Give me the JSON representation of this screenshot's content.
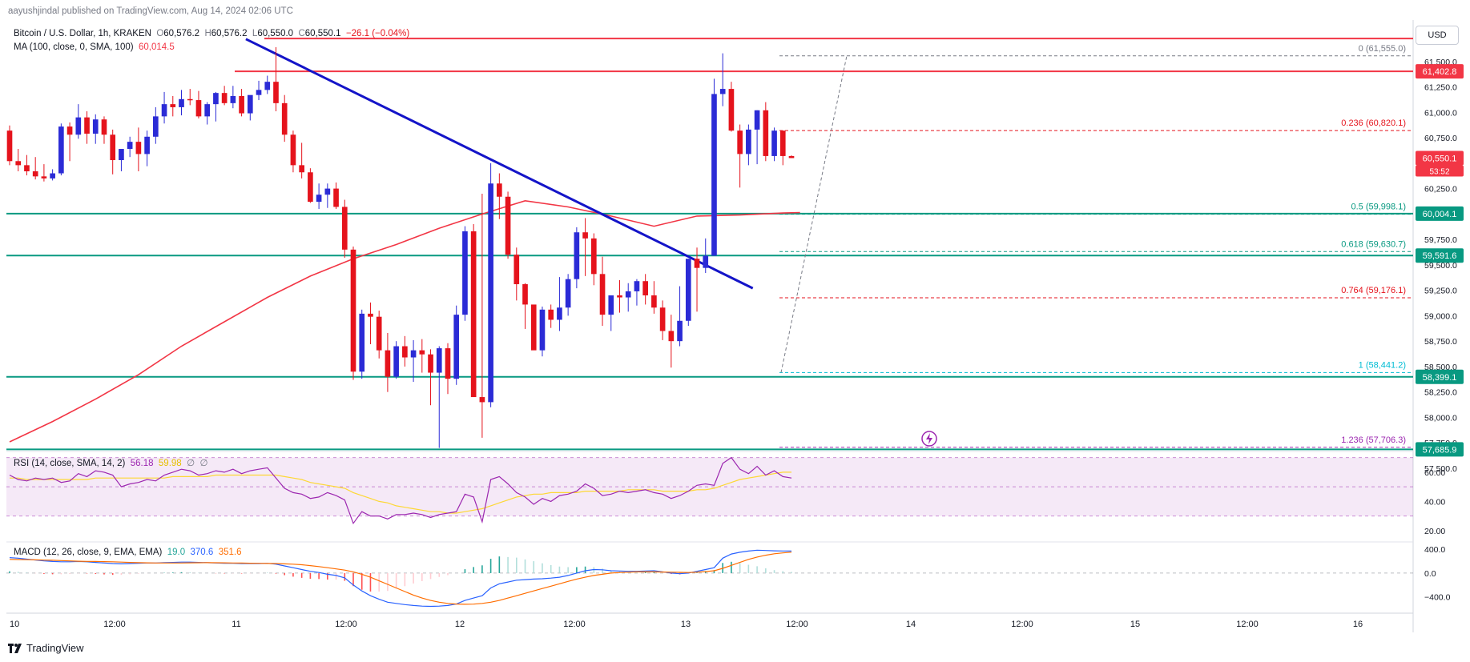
{
  "header": {
    "publisher": "aayushjindal published on TradingView.com, Aug 14, 2024 02:06 UTC",
    "symbol": "Bitcoin / U.S. Dollar, 1h, KRAKEN",
    "o_label": "O",
    "o_value": "60,576.2",
    "h_label": "H",
    "h_value": "60,576.2",
    "l_label": "L",
    "l_value": "60,550.0",
    "c_label": "C",
    "c_value": "60,550.1",
    "change": "−26.1 (−0.04%)",
    "ma_label": "MA (100, close, 0, SMA, 100)",
    "ma_value": "60,014.5",
    "currency_button": "USD"
  },
  "brand": "TradingView",
  "colors": {
    "up": "#2b2bd6",
    "down": "#e5131c",
    "ma": "#f23645",
    "trend": "#1414c8",
    "hline": "#089981",
    "resist": "#f23645",
    "rsi": "#9c27b0",
    "rsi_ma": "#fdd835",
    "macd": "#2962ff",
    "signal": "#ff6d00"
  },
  "chart_data": [
    {
      "type": "candlestick",
      "title": "Bitcoin / U.S. Dollar, 1h, KRAKEN",
      "ylim": [
        57500,
        61750
      ],
      "x_ticks": [
        "10",
        "12:00",
        "11",
        "12:00",
        "12",
        "12:00",
        "13",
        "12:00",
        "14",
        "12:00",
        "15",
        "12:00",
        "16"
      ],
      "y_ticks": [
        "61,500.0",
        "61,250.0",
        "61,000.0",
        "60,750.0",
        "60,500.0",
        "60,250.0",
        "60,000.0",
        "59,750.0",
        "59,500.0",
        "59,250.0",
        "59,000.0",
        "58,750.0",
        "58,500.0",
        "58,250.0",
        "58,000.0",
        "57,750.0",
        "57,500.0"
      ],
      "last_price_label": "60,550.1",
      "countdown_label": "53:52",
      "candles_ohlc": [
        [
          60820,
          60870,
          60480,
          60520
        ],
        [
          60520,
          60640,
          60420,
          60480
        ],
        [
          60480,
          60580,
          60380,
          60420
        ],
        [
          60420,
          60560,
          60340,
          60370
        ],
        [
          60370,
          60490,
          60320,
          60350
        ],
        [
          60350,
          60440,
          60330,
          60400
        ],
        [
          60400,
          60890,
          60380,
          60860
        ],
        [
          60860,
          60900,
          60520,
          60780
        ],
        [
          60780,
          61080,
          60740,
          60950
        ],
        [
          60950,
          61010,
          60690,
          60790
        ],
        [
          60790,
          60980,
          60690,
          60930
        ],
        [
          60930,
          60960,
          60690,
          60780
        ],
        [
          60780,
          60830,
          60390,
          60530
        ],
        [
          60530,
          60620,
          60420,
          60640
        ],
        [
          60640,
          60760,
          60560,
          60710
        ],
        [
          60710,
          60850,
          60420,
          60590
        ],
        [
          60590,
          60820,
          60470,
          60760
        ],
        [
          60760,
          61050,
          60690,
          60960
        ],
        [
          60960,
          61200,
          60890,
          61080
        ],
        [
          61080,
          61160,
          60960,
          61050
        ],
        [
          61050,
          61220,
          60970,
          61130
        ],
        [
          61130,
          61230,
          61070,
          61120
        ],
        [
          61120,
          61210,
          60940,
          60960
        ],
        [
          60960,
          61100,
          60880,
          61080
        ],
        [
          61080,
          61200,
          60910,
          61190
        ],
        [
          61190,
          61260,
          61070,
          61090
        ],
        [
          61090,
          61260,
          61040,
          61160
        ],
        [
          61160,
          61230,
          60960,
          60990
        ],
        [
          60990,
          61120,
          60920,
          61170
        ],
        [
          61170,
          61310,
          61120,
          61220
        ],
        [
          61220,
          61360,
          61180,
          61300
        ],
        [
          61300,
          61640,
          61010,
          61090
        ],
        [
          61090,
          61170,
          60710,
          60780
        ],
        [
          60780,
          60820,
          60410,
          60480
        ],
        [
          60480,
          60700,
          60350,
          60410
        ],
        [
          60410,
          60450,
          60110,
          60120
        ],
        [
          60120,
          60300,
          60050,
          60190
        ],
        [
          60190,
          60300,
          60060,
          60250
        ],
        [
          60250,
          60310,
          60050,
          60070
        ],
        [
          60070,
          60140,
          59570,
          59650
        ],
        [
          59650,
          59680,
          58370,
          58450
        ],
        [
          58450,
          59060,
          58380,
          59020
        ],
        [
          59020,
          59130,
          58720,
          58990
        ],
        [
          58990,
          59050,
          58580,
          58660
        ],
        [
          58660,
          58830,
          58250,
          58400
        ],
        [
          58400,
          58750,
          58380,
          58700
        ],
        [
          58700,
          58800,
          58500,
          58590
        ],
        [
          58590,
          58760,
          58350,
          58660
        ],
        [
          58660,
          58770,
          58440,
          58620
        ],
        [
          58620,
          58670,
          58120,
          58440
        ],
        [
          58440,
          58700,
          57700,
          58680
        ],
        [
          58680,
          58730,
          58230,
          58380
        ],
        [
          58380,
          59100,
          58320,
          59010
        ],
        [
          59010,
          59880,
          58950,
          59830
        ],
        [
          59830,
          59900,
          58300,
          58200
        ],
        [
          58200,
          60200,
          57800,
          58150
        ],
        [
          58150,
          60500,
          58100,
          60300
        ],
        [
          60300,
          60400,
          59950,
          60170
        ],
        [
          60170,
          60220,
          59560,
          59600
        ],
        [
          59600,
          59670,
          59150,
          59310
        ],
        [
          59310,
          59320,
          58870,
          59110
        ],
        [
          59110,
          59100,
          58670,
          58660
        ],
        [
          58660,
          59090,
          58600,
          59060
        ],
        [
          59060,
          59110,
          58880,
          58960
        ],
        [
          58960,
          59380,
          58850,
          59080
        ],
        [
          59080,
          59410,
          59000,
          59360
        ],
        [
          59360,
          59870,
          59270,
          59820
        ],
        [
          59820,
          59960,
          59390,
          59760
        ],
        [
          59760,
          59810,
          59300,
          59410
        ],
        [
          59410,
          59580,
          58900,
          59010
        ],
        [
          59010,
          59110,
          58850,
          59200
        ],
        [
          59200,
          59350,
          59030,
          59180
        ],
        [
          59180,
          59320,
          59040,
          59240
        ],
        [
          59240,
          59360,
          59100,
          59340
        ],
        [
          59340,
          59410,
          59110,
          59200
        ],
        [
          59200,
          59340,
          59020,
          59080
        ],
        [
          59080,
          59150,
          58760,
          58850
        ],
        [
          58850,
          59010,
          58490,
          58750
        ],
        [
          58750,
          59290,
          58700,
          58950
        ],
        [
          58950,
          59400,
          58900,
          59560
        ],
        [
          59560,
          59670,
          59040,
          59470
        ],
        [
          59470,
          59760,
          59420,
          59590
        ],
        [
          59590,
          61330,
          59590,
          61180
        ],
        [
          61180,
          61580,
          61060,
          61230
        ],
        [
          61230,
          61300,
          60810,
          60820
        ],
        [
          60820,
          60880,
          60260,
          60590
        ],
        [
          60590,
          60880,
          60480,
          60830
        ],
        [
          60830,
          61020,
          60490,
          61020
        ],
        [
          61020,
          61100,
          60520,
          60570
        ],
        [
          60570,
          60850,
          60520,
          60820
        ],
        [
          60820,
          60820,
          60480,
          60570
        ],
        [
          60570,
          60576,
          60550,
          60550
        ]
      ],
      "series": [
        {
          "name": "MA (100, close, 0, SMA, 100)",
          "type": "line",
          "x": [
            0,
            5,
            10,
            15,
            20,
            25,
            30,
            35,
            40,
            45,
            50,
            55,
            60,
            65,
            70,
            75,
            80,
            85,
            90,
            92
          ],
          "values": [
            57760,
            57960,
            58180,
            58420,
            58700,
            58940,
            59180,
            59390,
            59560,
            59700,
            59860,
            60000,
            60130,
            60070,
            59980,
            59880,
            59980,
            59990,
            60010,
            60014.5
          ]
        }
      ],
      "trendline": {
        "from": [
          27.5,
          61720
        ],
        "to": [
          86.5,
          59270
        ]
      },
      "horizontal_levels": [
        {
          "price": 61725,
          "color": "resist"
        },
        {
          "price": 61402.8,
          "color": "resist",
          "label": "61,402.8"
        },
        {
          "price": 60004.1,
          "color": "hline",
          "label": "60,004.1"
        },
        {
          "price": 59591.6,
          "color": "hline",
          "label": "59,591.6"
        },
        {
          "price": 58399.1,
          "color": "hline",
          "label": "58,399.1"
        },
        {
          "price": 57685.9,
          "color": "hline",
          "label": "57,685.9"
        }
      ],
      "fibonacci": [
        {
          "ratio": "0",
          "price": 61555.0,
          "label": "0 (61,555.0)",
          "color": "#787b86"
        },
        {
          "ratio": "0.236",
          "price": 60820.1,
          "label": "0.236 (60,820.1)",
          "color": "#e5131c"
        },
        {
          "ratio": "0.5",
          "price": 59998.1,
          "label": "0.5 (59,998.1)",
          "color": "#089981"
        },
        {
          "ratio": "0.618",
          "price": 59630.7,
          "label": "0.618 (59,630.7)",
          "color": "#089981"
        },
        {
          "ratio": "0.764",
          "price": 59176.1,
          "label": "0.764 (59,176.1)",
          "color": "#e5131c"
        },
        {
          "ratio": "1",
          "price": 58441.2,
          "label": "1 (58,441.2)",
          "color": "#00bcd4"
        },
        {
          "ratio": "1.236",
          "price": 57706.3,
          "label": "1.236 (57,706.3)",
          "color": "#9c27b0"
        }
      ]
    },
    {
      "type": "line",
      "title": "RSI (14, close, SMA, 14, 2)",
      "label": "RSI (14, close, SMA, 14, 2)",
      "value_labels": [
        "56.18",
        "59.98",
        "∅",
        "∅"
      ],
      "ylim": [
        15,
        72
      ],
      "y_ticks": [
        "60.00",
        "40.00",
        "20.00"
      ],
      "band": [
        30,
        70
      ],
      "series": [
        {
          "name": "RSI",
          "values": [
            58,
            55,
            54,
            56,
            55,
            56,
            53,
            54,
            59,
            57,
            61,
            60,
            58,
            50,
            52,
            53,
            55,
            54,
            58,
            60,
            62,
            61,
            58,
            59,
            61,
            60,
            62,
            59,
            61,
            62,
            63,
            56,
            49,
            46,
            45,
            42,
            43,
            46,
            44,
            41,
            25,
            33,
            30,
            30,
            28,
            31,
            31,
            32,
            31,
            29,
            31,
            32,
            33,
            45,
            43,
            26,
            55,
            57,
            52,
            46,
            43,
            38,
            42,
            40,
            44,
            45,
            47,
            52,
            49,
            44,
            45,
            47,
            46,
            47,
            48,
            46,
            45,
            42,
            44,
            47,
            51,
            52,
            51,
            66,
            70,
            62,
            59,
            64,
            58,
            61,
            57,
            56
          ]
        },
        {
          "name": "RSI MA",
          "values": [
            56,
            56,
            55,
            55,
            55,
            55,
            55,
            55,
            55,
            55,
            56,
            56,
            56,
            56,
            56,
            56,
            56,
            56,
            56,
            57,
            57,
            57,
            57,
            57,
            58,
            58,
            58,
            58,
            58,
            58,
            58,
            58,
            57,
            56,
            55,
            53,
            52,
            51,
            50,
            49,
            46,
            44,
            42,
            40,
            39,
            37,
            36,
            35,
            34,
            33,
            33,
            32,
            32,
            33,
            34,
            35,
            37,
            39,
            41,
            43,
            44,
            45,
            45,
            46,
            46,
            46,
            46,
            47,
            47,
            47,
            47,
            47,
            48,
            48,
            48,
            48,
            47,
            47,
            47,
            47,
            48,
            48,
            49,
            51,
            53,
            55,
            56,
            57,
            58,
            59,
            59.98,
            60
          ]
        }
      ]
    },
    {
      "type": "bar",
      "title": "MACD (12, 26, close, 9, EMA, EMA)",
      "label": "MACD (12, 26, close, 9, EMA, EMA)",
      "value_labels": [
        "19.0",
        "370.6",
        "351.6"
      ],
      "ylim": [
        -620,
        470
      ],
      "y_ticks": [
        "400.0",
        "0.0",
        "−400.0"
      ],
      "series": [
        {
          "name": "MACD",
          "values": [
            260,
            250,
            235,
            220,
            205,
            195,
            190,
            190,
            195,
            190,
            180,
            170,
            160,
            155,
            160,
            165,
            170,
            170,
            175,
            180,
            185,
            185,
            180,
            175,
            170,
            165,
            165,
            160,
            160,
            160,
            165,
            150,
            120,
            90,
            60,
            30,
            10,
            -20,
            -40,
            -80,
            -200,
            -300,
            -380,
            -440,
            -490,
            -510,
            -530,
            -545,
            -555,
            -560,
            -555,
            -545,
            -520,
            -460,
            -420,
            -380,
            -250,
            -180,
            -150,
            -120,
            -110,
            -100,
            -95,
            -85,
            -70,
            -40,
            0,
            40,
            60,
            55,
            40,
            35,
            30,
            30,
            35,
            40,
            20,
            0,
            -10,
            0,
            30,
            60,
            90,
            250,
            320,
            350,
            370,
            385,
            380,
            375,
            372,
            370.6
          ]
        },
        {
          "name": "Signal",
          "values": [
            230,
            228,
            225,
            222,
            219,
            215,
            210,
            205,
            200,
            197,
            195,
            193,
            190,
            185,
            180,
            175,
            172,
            170,
            170,
            170,
            170,
            172,
            174,
            175,
            174,
            172,
            170,
            168,
            166,
            164,
            162,
            160,
            155,
            150,
            140,
            125,
            110,
            90,
            70,
            50,
            20,
            -20,
            -70,
            -130,
            -190,
            -250,
            -310,
            -370,
            -420,
            -460,
            -490,
            -510,
            -520,
            -525,
            -522,
            -510,
            -490,
            -460,
            -420,
            -380,
            -340,
            -300,
            -260,
            -220,
            -180,
            -140,
            -100,
            -70,
            -40,
            -20,
            0,
            10,
            15,
            20,
            20,
            20,
            18,
            15,
            12,
            10,
            15,
            25,
            40,
            80,
            130,
            180,
            230,
            270,
            300,
            325,
            340,
            351.6
          ]
        }
      ]
    }
  ]
}
